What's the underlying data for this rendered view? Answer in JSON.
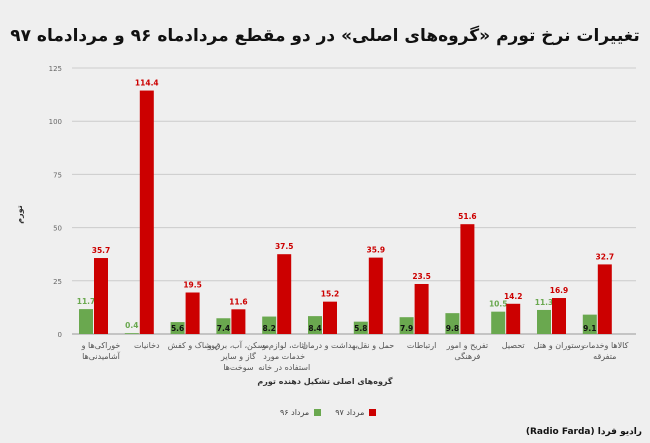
{
  "chart_data": {
    "type": "bar",
    "title": "تغییرات نرخ تورم «گروه‌های اصلی» در دو مقطع مردادماه ۹۶ و مردادماه ۹۷",
    "xlabel": "گروه‌های اصلی تشکیل دهنده تورم",
    "ylabel": "تورم",
    "ylim": [
      0,
      125
    ],
    "yticks": [
      "0",
      "25",
      "50",
      "75",
      "100",
      "125"
    ],
    "grid": true,
    "legend_position": "bottom",
    "categories": [
      "خوراکی‌ها و آشامیدنی‌ها",
      "دخانیات",
      "پوشاک و کفش",
      "مسکن، آب، برق و گاز و سایر سوخت‌ها",
      "اثاث، لوازم و خدمات مورد استفاده در خانه",
      "بهداشت و درمان",
      "حمل و نقل",
      "ارتباطات",
      "تفریح و امور فرهنگی",
      "تحصیل",
      "رستوران و هتل",
      "کالاها وخدمات متفرقه"
    ],
    "series": [
      {
        "name": "مرداد ۹۶",
        "color": "#6aa84f",
        "values": [
          11.7,
          0.4,
          5.6,
          7.4,
          8.2,
          8.4,
          5.8,
          7.9,
          9.8,
          10.5,
          11.3,
          9.1
        ]
      },
      {
        "name": "مرداد ۹۷",
        "color": "#cc0000",
        "values": [
          35.7,
          114.4,
          19.5,
          11.6,
          37.5,
          15.2,
          35.9,
          23.5,
          51.6,
          14.2,
          16.9,
          32.7
        ]
      }
    ]
  },
  "source": "(Radio Farda) رادیو فردا"
}
